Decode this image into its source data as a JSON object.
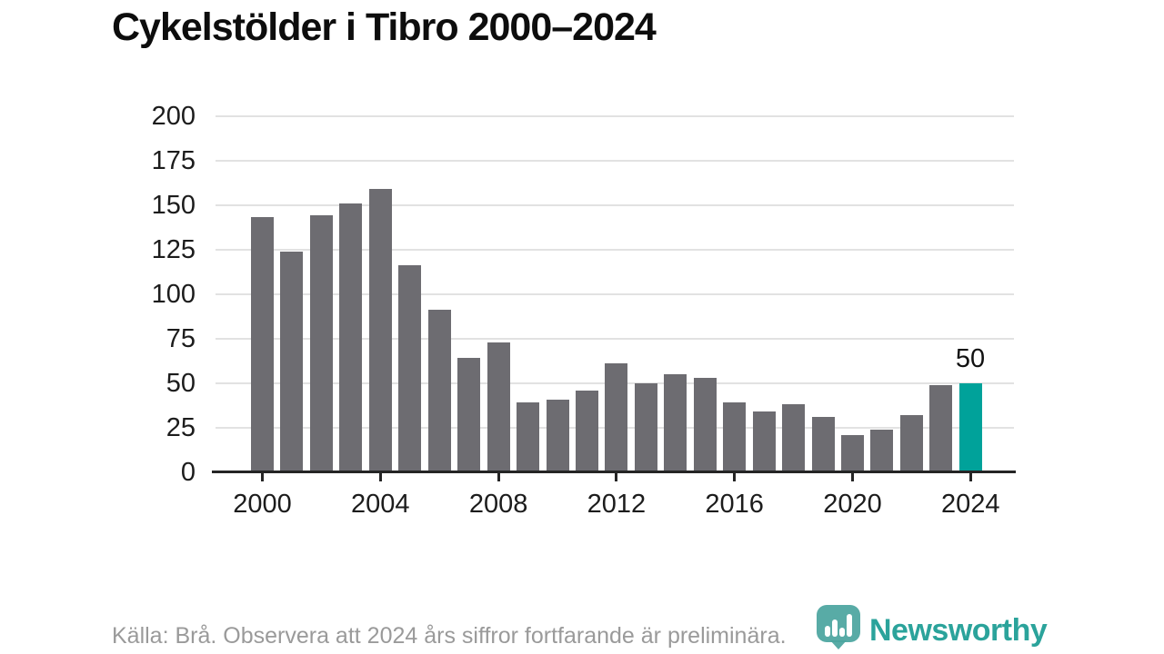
{
  "title": "Cykelstölder i Tibro 2000–2024",
  "source_note": "Källa: Brå. Observera att 2024 års siffror fortfarande är preliminära.",
  "logo": {
    "text": "Newsworthy",
    "icon": "newsworthy-pin-icon"
  },
  "colors": {
    "bar": "#6d6c71",
    "highlight": "#00a29a",
    "grid": "#e2e2e2",
    "axis": "#252525",
    "axis_label": "#1c1c1c",
    "title": "#0d0d0d",
    "source_text": "#9a9a9a",
    "logo_teal": "#2ba39b",
    "logo_pin": "#4aa49e"
  },
  "chart_data": {
    "type": "bar",
    "title": "Cykelstölder i Tibro 2000–2024",
    "xlabel": "",
    "ylabel": "",
    "x": [
      2000,
      2001,
      2002,
      2003,
      2004,
      2005,
      2006,
      2007,
      2008,
      2009,
      2010,
      2011,
      2012,
      2013,
      2014,
      2015,
      2016,
      2017,
      2018,
      2019,
      2020,
      2021,
      2022,
      2023,
      2024
    ],
    "values": [
      143,
      124,
      144,
      151,
      159,
      116,
      91,
      64,
      73,
      39,
      41,
      46,
      61,
      50,
      55,
      53,
      39,
      34,
      38,
      31,
      21,
      24,
      32,
      49,
      50
    ],
    "highlight_x": 2024,
    "highlight_value_label": "50",
    "ylim": [
      0,
      200
    ],
    "y_ticks": [
      0,
      25,
      50,
      75,
      100,
      125,
      150,
      175,
      200
    ],
    "x_ticks": [
      2000,
      2004,
      2008,
      2012,
      2016,
      2020,
      2024
    ],
    "grid": "horizontal",
    "legend_position": "none"
  }
}
